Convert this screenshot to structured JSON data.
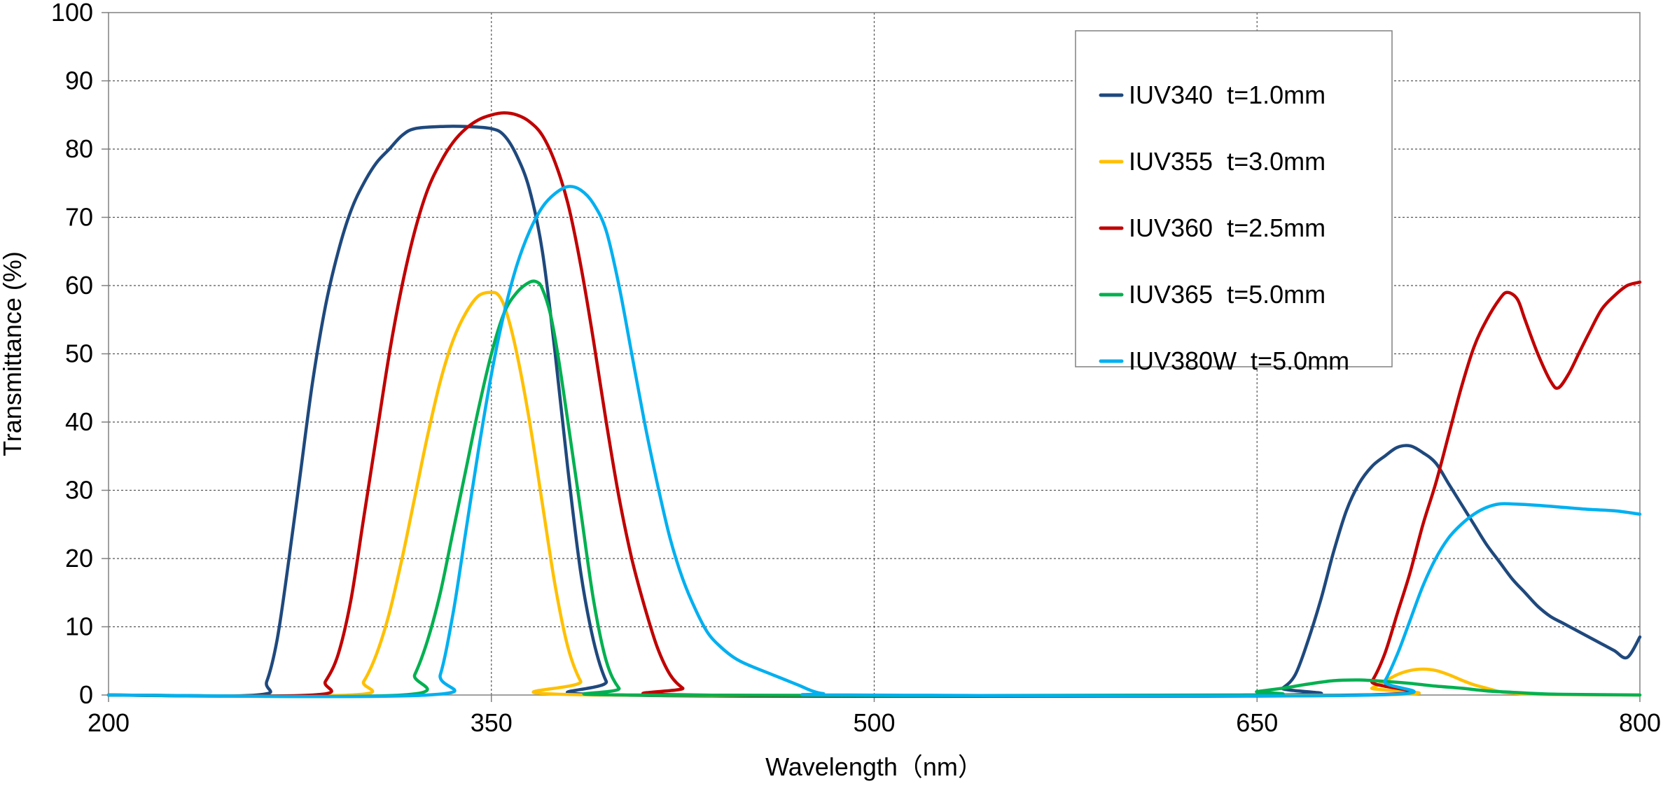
{
  "chart_data": {
    "type": "line",
    "title": "",
    "xlabel": "Wavelength（nm）",
    "ylabel": "Transmittance (%)",
    "xlim": [
      200,
      800
    ],
    "ylim": [
      0,
      100
    ],
    "x_ticks": [
      200,
      350,
      500,
      650,
      800
    ],
    "y_ticks": [
      0,
      10,
      20,
      30,
      40,
      50,
      60,
      70,
      80,
      90,
      100
    ],
    "grid": true,
    "legend_position": "top-right",
    "series": [
      {
        "name": "IUV340  t=1.0mm",
        "color": "#1F497D",
        "points": [
          [
            200,
            0
          ],
          [
            258,
            0
          ],
          [
            262,
            2
          ],
          [
            266,
            8
          ],
          [
            270,
            18
          ],
          [
            275,
            32
          ],
          [
            280,
            46
          ],
          [
            285,
            57
          ],
          [
            290,
            65
          ],
          [
            295,
            71
          ],
          [
            300,
            75
          ],
          [
            305,
            78
          ],
          [
            310,
            80
          ],
          [
            315,
            82
          ],
          [
            320,
            83
          ],
          [
            330,
            83.3
          ],
          [
            340,
            83.3
          ],
          [
            350,
            83
          ],
          [
            355,
            82
          ],
          [
            360,
            79
          ],
          [
            365,
            74
          ],
          [
            370,
            65
          ],
          [
            375,
            50
          ],
          [
            380,
            33
          ],
          [
            385,
            18
          ],
          [
            390,
            8
          ],
          [
            395,
            2
          ],
          [
            400,
            0
          ],
          [
            655,
            0
          ],
          [
            660,
            1
          ],
          [
            665,
            3
          ],
          [
            670,
            8
          ],
          [
            675,
            14
          ],
          [
            680,
            21
          ],
          [
            685,
            27
          ],
          [
            690,
            31
          ],
          [
            695,
            33.5
          ],
          [
            700,
            35
          ],
          [
            705,
            36.3
          ],
          [
            710,
            36.5
          ],
          [
            715,
            35.5
          ],
          [
            720,
            34
          ],
          [
            725,
            31
          ],
          [
            730,
            28
          ],
          [
            735,
            25
          ],
          [
            740,
            22
          ],
          [
            745,
            19.5
          ],
          [
            750,
            17
          ],
          [
            755,
            15
          ],
          [
            760,
            13
          ],
          [
            765,
            11.5
          ],
          [
            770,
            10.5
          ],
          [
            775,
            9.5
          ],
          [
            780,
            8.5
          ],
          [
            785,
            7.5
          ],
          [
            790,
            6.5
          ],
          [
            795,
            5.5
          ],
          [
            800,
            8.5
          ]
        ]
      },
      {
        "name": "IUV355  t=3.0mm",
        "color": "#FFC000",
        "points": [
          [
            200,
            0
          ],
          [
            295,
            0
          ],
          [
            300,
            2
          ],
          [
            305,
            6
          ],
          [
            310,
            12
          ],
          [
            315,
            20
          ],
          [
            320,
            29
          ],
          [
            325,
            38
          ],
          [
            330,
            46
          ],
          [
            335,
            52
          ],
          [
            340,
            56
          ],
          [
            345,
            58.5
          ],
          [
            350,
            59
          ],
          [
            353,
            58.5
          ],
          [
            356,
            56
          ],
          [
            360,
            50
          ],
          [
            365,
            40
          ],
          [
            370,
            28
          ],
          [
            375,
            16
          ],
          [
            380,
            7
          ],
          [
            385,
            2
          ],
          [
            390,
            0
          ],
          [
            690,
            0
          ],
          [
            695,
            1
          ],
          [
            700,
            2
          ],
          [
            705,
            3
          ],
          [
            710,
            3.6
          ],
          [
            715,
            3.8
          ],
          [
            720,
            3.6
          ],
          [
            725,
            3
          ],
          [
            730,
            2.2
          ],
          [
            735,
            1.5
          ],
          [
            740,
            1
          ],
          [
            745,
            0.5
          ],
          [
            750,
            0.3
          ],
          [
            760,
            0.1
          ],
          [
            800,
            0
          ]
        ]
      },
      {
        "name": "IUV360  t=2.5mm",
        "color": "#C00000",
        "points": [
          [
            200,
            0
          ],
          [
            280,
            0
          ],
          [
            285,
            2
          ],
          [
            290,
            6
          ],
          [
            295,
            14
          ],
          [
            300,
            26
          ],
          [
            305,
            38
          ],
          [
            310,
            50
          ],
          [
            315,
            60
          ],
          [
            320,
            68
          ],
          [
            325,
            74
          ],
          [
            330,
            78
          ],
          [
            335,
            81
          ],
          [
            340,
            83
          ],
          [
            345,
            84.3
          ],
          [
            350,
            85
          ],
          [
            355,
            85.3
          ],
          [
            360,
            85
          ],
          [
            365,
            84
          ],
          [
            370,
            82
          ],
          [
            375,
            78
          ],
          [
            380,
            72
          ],
          [
            385,
            63
          ],
          [
            390,
            52
          ],
          [
            395,
            40
          ],
          [
            400,
            29
          ],
          [
            405,
            20
          ],
          [
            410,
            13
          ],
          [
            415,
            7
          ],
          [
            420,
            3
          ],
          [
            425,
            1
          ],
          [
            430,
            0
          ],
          [
            690,
            0
          ],
          [
            695,
            2
          ],
          [
            700,
            6
          ],
          [
            705,
            12
          ],
          [
            710,
            18
          ],
          [
            715,
            25
          ],
          [
            720,
            31
          ],
          [
            725,
            38
          ],
          [
            730,
            45
          ],
          [
            735,
            51
          ],
          [
            740,
            55
          ],
          [
            745,
            58
          ],
          [
            748,
            59
          ],
          [
            752,
            58
          ],
          [
            755,
            55
          ],
          [
            760,
            50
          ],
          [
            765,
            46
          ],
          [
            768,
            45
          ],
          [
            772,
            47
          ],
          [
            776,
            50
          ],
          [
            780,
            53
          ],
          [
            785,
            56.5
          ],
          [
            790,
            58.5
          ],
          [
            795,
            60
          ],
          [
            800,
            60.5
          ]
        ]
      },
      {
        "name": "IUV365  t=5.0mm",
        "color": "#00B050",
        "points": [
          [
            200,
            0
          ],
          [
            315,
            0
          ],
          [
            320,
            3
          ],
          [
            325,
            8
          ],
          [
            330,
            15
          ],
          [
            335,
            24
          ],
          [
            340,
            33
          ],
          [
            345,
            42
          ],
          [
            350,
            50
          ],
          [
            355,
            56
          ],
          [
            360,
            59
          ],
          [
            365,
            60.5
          ],
          [
            368,
            60.5
          ],
          [
            370,
            59.5
          ],
          [
            373,
            56
          ],
          [
            376,
            50
          ],
          [
            380,
            40
          ],
          [
            385,
            27
          ],
          [
            390,
            14
          ],
          [
            395,
            5
          ],
          [
            400,
            1
          ],
          [
            405,
            0
          ],
          [
            640,
            0
          ],
          [
            650,
            0.5
          ],
          [
            660,
            1
          ],
          [
            670,
            1.6
          ],
          [
            680,
            2.1
          ],
          [
            690,
            2.2
          ],
          [
            700,
            2
          ],
          [
            710,
            1.7
          ],
          [
            720,
            1.3
          ],
          [
            730,
            1
          ],
          [
            740,
            0.6
          ],
          [
            750,
            0.4
          ],
          [
            760,
            0.2
          ],
          [
            770,
            0.1
          ],
          [
            800,
            0
          ]
        ]
      },
      {
        "name": "IUV380W  t=5.0mm",
        "color": "#00B0F0",
        "points": [
          [
            200,
            0
          ],
          [
            325,
            0
          ],
          [
            330,
            3
          ],
          [
            335,
            12
          ],
          [
            340,
            24
          ],
          [
            345,
            36
          ],
          [
            350,
            47
          ],
          [
            355,
            56
          ],
          [
            360,
            63
          ],
          [
            365,
            68
          ],
          [
            370,
            71.5
          ],
          [
            375,
            73.5
          ],
          [
            380,
            74.5
          ],
          [
            385,
            74
          ],
          [
            390,
            72
          ],
          [
            395,
            68
          ],
          [
            400,
            60
          ],
          [
            405,
            50
          ],
          [
            410,
            40
          ],
          [
            415,
            31
          ],
          [
            420,
            23
          ],
          [
            425,
            17
          ],
          [
            430,
            12.5
          ],
          [
            435,
            9
          ],
          [
            440,
            7
          ],
          [
            445,
            5.5
          ],
          [
            450,
            4.5
          ],
          [
            460,
            3
          ],
          [
            470,
            1.5
          ],
          [
            475,
            0.7
          ],
          [
            480,
            0.2
          ],
          [
            490,
            0
          ],
          [
            695,
            0
          ],
          [
            700,
            2
          ],
          [
            705,
            6
          ],
          [
            710,
            11
          ],
          [
            715,
            16
          ],
          [
            720,
            20
          ],
          [
            725,
            23
          ],
          [
            730,
            25
          ],
          [
            735,
            26.5
          ],
          [
            740,
            27.5
          ],
          [
            745,
            28
          ],
          [
            750,
            28
          ],
          [
            760,
            27.8
          ],
          [
            770,
            27.5
          ],
          [
            780,
            27.2
          ],
          [
            790,
            27
          ],
          [
            800,
            26.5
          ]
        ]
      }
    ]
  }
}
